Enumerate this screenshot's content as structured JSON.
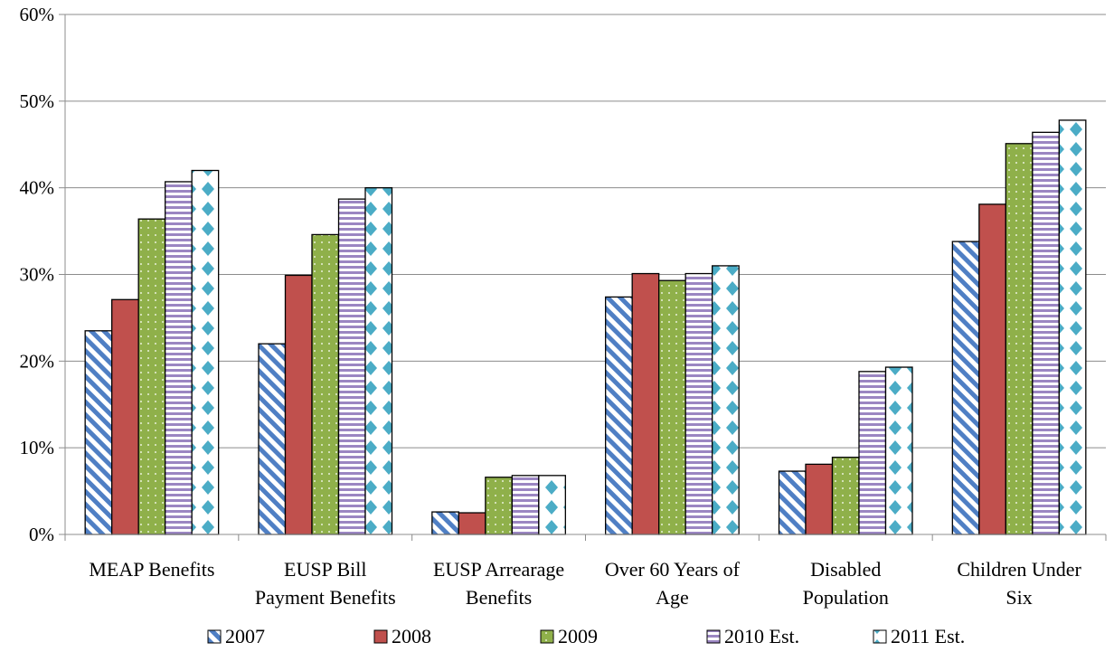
{
  "chart_data": {
    "type": "bar",
    "title": "",
    "xlabel": "",
    "ylabel": "",
    "ylim": [
      0,
      60
    ],
    "y_ticks": [
      "0%",
      "10%",
      "20%",
      "30%",
      "40%",
      "50%",
      "60%"
    ],
    "grid": true,
    "legend_position": "bottom",
    "categories": [
      [
        "MEAP Benefits"
      ],
      [
        "EUSP Bill",
        "Payment Benefits"
      ],
      [
        "EUSP Arrearage",
        "Benefits"
      ],
      [
        "Over 60 Years of",
        "Age"
      ],
      [
        "Disabled",
        "Population"
      ],
      [
        "Children Under",
        "Six"
      ]
    ],
    "series": [
      {
        "name": "2007",
        "values": [
          23.5,
          22.0,
          2.6,
          27.4,
          7.3,
          33.8
        ],
        "color": "#4f7fc4",
        "pattern": "diagonal-stripes"
      },
      {
        "name": "2008",
        "values": [
          27.1,
          29.9,
          2.5,
          30.1,
          8.1,
          38.1
        ],
        "color": "#c0504d",
        "pattern": "solid"
      },
      {
        "name": "2009",
        "values": [
          36.4,
          34.6,
          6.6,
          29.3,
          8.9,
          45.1
        ],
        "color": "#8fb04a",
        "pattern": "dots"
      },
      {
        "name": "2010 Est.",
        "values": [
          40.7,
          38.7,
          6.8,
          30.1,
          18.8,
          46.4
        ],
        "color": "#9b86c2",
        "pattern": "horizontal-stripes"
      },
      {
        "name": "2011 Est.",
        "values": [
          42.0,
          40.0,
          6.8,
          31.0,
          19.3,
          47.8
        ],
        "color": "#4bacc6",
        "pattern": "diamonds"
      }
    ]
  }
}
